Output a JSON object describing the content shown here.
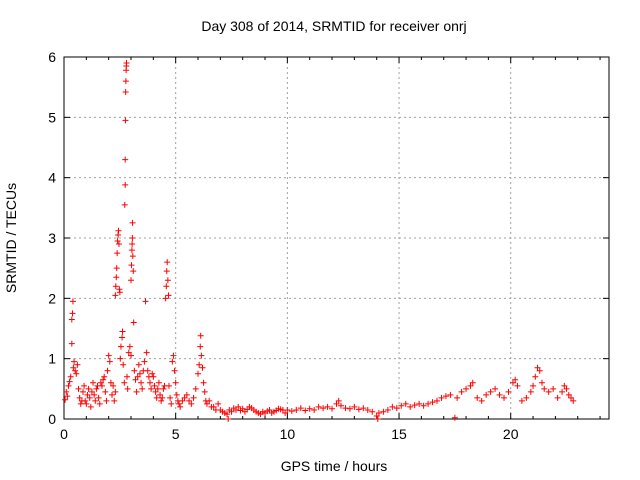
{
  "chart_data": {
    "type": "scatter",
    "title": "Day 308 of 2014, SRMTID for receiver onrj",
    "xlabel": "GPS time / hours",
    "ylabel": "SRMTID / TECUs",
    "xlim": [
      0,
      24.4
    ],
    "ylim": [
      0,
      6
    ],
    "xticks": [
      0,
      5,
      10,
      15,
      20
    ],
    "yticks": [
      0,
      1,
      2,
      3,
      4,
      5,
      6
    ],
    "grid": true,
    "marker": "+",
    "colors": {
      "series": "#ff0000",
      "grid": "#a0a0a0",
      "frame": "#000000"
    },
    "series": [
      {
        "name": "SRMTID",
        "points": [
          [
            0.05,
            0.32
          ],
          [
            0.1,
            0.45
          ],
          [
            0.15,
            0.38
          ],
          [
            0.2,
            0.55
          ],
          [
            0.25,
            0.62
          ],
          [
            0.3,
            0.7
          ],
          [
            0.35,
            1.25
          ],
          [
            0.35,
            1.65
          ],
          [
            0.38,
            1.75
          ],
          [
            0.4,
            1.95
          ],
          [
            0.42,
            0.85
          ],
          [
            0.45,
            0.95
          ],
          [
            0.5,
            0.8
          ],
          [
            0.55,
            0.75
          ],
          [
            0.6,
            0.9
          ],
          [
            0.65,
            0.5
          ],
          [
            0.7,
            0.35
          ],
          [
            0.75,
            0.25
          ],
          [
            0.8,
            0.3
          ],
          [
            0.85,
            0.45
          ],
          [
            0.9,
            0.55
          ],
          [
            0.95,
            0.3
          ],
          [
            1.0,
            0.25
          ],
          [
            1.05,
            0.4
          ],
          [
            1.1,
            0.5
          ],
          [
            1.15,
            0.35
          ],
          [
            1.2,
            0.2
          ],
          [
            1.25,
            0.45
          ],
          [
            1.3,
            0.6
          ],
          [
            1.35,
            0.4
          ],
          [
            1.4,
            0.3
          ],
          [
            1.45,
            0.5
          ],
          [
            1.5,
            0.55
          ],
          [
            1.55,
            0.35
          ],
          [
            1.6,
            0.25
          ],
          [
            1.65,
            0.6
          ],
          [
            1.7,
            0.55
          ],
          [
            1.75,
            0.65
          ],
          [
            1.8,
            0.7
          ],
          [
            1.85,
            0.45
          ],
          [
            1.9,
            0.3
          ],
          [
            1.95,
            0.8
          ],
          [
            2.0,
            1.05
          ],
          [
            2.05,
            0.95
          ],
          [
            2.1,
            0.6
          ],
          [
            2.15,
            0.4
          ],
          [
            2.2,
            0.55
          ],
          [
            2.25,
            0.3
          ],
          [
            2.3,
            0.45
          ],
          [
            2.3,
            2.05
          ],
          [
            2.32,
            2.2
          ],
          [
            2.34,
            2.35
          ],
          [
            2.36,
            2.5
          ],
          [
            2.38,
            2.75
          ],
          [
            2.4,
            2.95
          ],
          [
            2.42,
            3.05
          ],
          [
            2.44,
            3.12
          ],
          [
            2.46,
            2.9
          ],
          [
            2.48,
            2.15
          ],
          [
            2.5,
            2.1
          ],
          [
            2.52,
            1.0
          ],
          [
            2.55,
            1.2
          ],
          [
            2.6,
            1.35
          ],
          [
            2.62,
            1.45
          ],
          [
            2.65,
            0.9
          ],
          [
            2.7,
            0.6
          ],
          [
            2.72,
            3.55
          ],
          [
            2.74,
            3.88
          ],
          [
            2.74,
            4.3
          ],
          [
            2.75,
            4.95
          ],
          [
            2.76,
            5.42
          ],
          [
            2.77,
            5.6
          ],
          [
            2.78,
            5.78
          ],
          [
            2.79,
            5.85
          ],
          [
            2.8,
            5.9
          ],
          [
            2.82,
            0.7
          ],
          [
            2.85,
            0.5
          ],
          [
            2.9,
            1.1
          ],
          [
            2.95,
            1.2
          ],
          [
            3.0,
            1.05
          ],
          [
            3.0,
            2.3
          ],
          [
            3.02,
            2.55
          ],
          [
            3.04,
            2.8
          ],
          [
            3.05,
            2.9
          ],
          [
            3.06,
            3.0
          ],
          [
            3.07,
            3.25
          ],
          [
            3.08,
            2.7
          ],
          [
            3.1,
            2.45
          ],
          [
            3.12,
            1.6
          ],
          [
            3.15,
            0.8
          ],
          [
            3.2,
            0.65
          ],
          [
            3.25,
            0.45
          ],
          [
            3.3,
            0.7
          ],
          [
            3.35,
            0.9
          ],
          [
            3.4,
            0.75
          ],
          [
            3.45,
            0.6
          ],
          [
            3.5,
            0.5
          ],
          [
            3.55,
            0.8
          ],
          [
            3.6,
            0.95
          ],
          [
            3.65,
            1.95
          ],
          [
            3.7,
            1.1
          ],
          [
            3.75,
            0.8
          ],
          [
            3.8,
            0.7
          ],
          [
            3.85,
            0.6
          ],
          [
            3.9,
            0.5
          ],
          [
            3.95,
            0.75
          ],
          [
            4.0,
            0.7
          ],
          [
            4.05,
            0.55
          ],
          [
            4.1,
            0.45
          ],
          [
            4.15,
            0.35
          ],
          [
            4.2,
            0.5
          ],
          [
            4.25,
            0.6
          ],
          [
            4.3,
            0.4
          ],
          [
            4.35,
            0.3
          ],
          [
            4.4,
            0.35
          ],
          [
            4.45,
            0.5
          ],
          [
            4.5,
            0.55
          ],
          [
            4.55,
            2.0
          ],
          [
            4.58,
            2.2
          ],
          [
            4.6,
            2.45
          ],
          [
            4.62,
            2.6
          ],
          [
            4.65,
            2.3
          ],
          [
            4.68,
            2.05
          ],
          [
            4.7,
            0.55
          ],
          [
            4.75,
            0.35
          ],
          [
            4.8,
            0.25
          ],
          [
            4.85,
            0.95
          ],
          [
            4.9,
            1.05
          ],
          [
            4.95,
            0.8
          ],
          [
            5.0,
            0.6
          ],
          [
            5.05,
            0.4
          ],
          [
            5.1,
            0.3
          ],
          [
            5.15,
            0.25
          ],
          [
            5.2,
            0.2
          ],
          [
            5.3,
            0.3
          ],
          [
            5.4,
            0.35
          ],
          [
            5.5,
            0.4
          ],
          [
            5.6,
            0.3
          ],
          [
            5.7,
            0.25
          ],
          [
            5.8,
            0.35
          ],
          [
            5.9,
            0.5
          ],
          [
            6.0,
            0.75
          ],
          [
            6.05,
            0.9
          ],
          [
            6.1,
            1.2
          ],
          [
            6.12,
            1.38
          ],
          [
            6.15,
            1.05
          ],
          [
            6.2,
            0.85
          ],
          [
            6.25,
            0.6
          ],
          [
            6.3,
            0.45
          ],
          [
            6.35,
            0.3
          ],
          [
            6.4,
            0.25
          ],
          [
            6.5,
            0.3
          ],
          [
            6.6,
            0.2
          ],
          [
            6.7,
            0.2
          ],
          [
            6.8,
            0.15
          ],
          [
            6.9,
            0.25
          ],
          [
            7.0,
            0.15
          ],
          [
            7.1,
            0.12
          ],
          [
            7.2,
            0.1
          ],
          [
            7.3,
            0.08
          ],
          [
            7.35,
            0.0
          ],
          [
            7.4,
            0.15
          ],
          [
            7.5,
            0.12
          ],
          [
            7.6,
            0.18
          ],
          [
            7.7,
            0.15
          ],
          [
            7.8,
            0.2
          ],
          [
            7.9,
            0.14
          ],
          [
            8.0,
            0.17
          ],
          [
            8.1,
            0.12
          ],
          [
            8.2,
            0.16
          ],
          [
            8.3,
            0.2
          ],
          [
            8.4,
            0.18
          ],
          [
            8.5,
            0.15
          ],
          [
            8.6,
            0.12
          ],
          [
            8.7,
            0.1
          ],
          [
            8.8,
            0.08
          ],
          [
            8.9,
            0.12
          ],
          [
            9.0,
            0.1
          ],
          [
            9.1,
            0.13
          ],
          [
            9.2,
            0.15
          ],
          [
            9.3,
            0.1
          ],
          [
            9.4,
            0.12
          ],
          [
            9.5,
            0.14
          ],
          [
            9.6,
            0.17
          ],
          [
            9.7,
            0.16
          ],
          [
            9.8,
            0.15
          ],
          [
            9.9,
            0.1
          ],
          [
            10.0,
            0.15
          ],
          [
            10.2,
            0.13
          ],
          [
            10.4,
            0.15
          ],
          [
            10.6,
            0.18
          ],
          [
            10.8,
            0.14
          ],
          [
            11.0,
            0.17
          ],
          [
            11.2,
            0.15
          ],
          [
            11.4,
            0.2
          ],
          [
            11.6,
            0.18
          ],
          [
            11.8,
            0.2
          ],
          [
            12.0,
            0.17
          ],
          [
            12.2,
            0.25
          ],
          [
            12.3,
            0.3
          ],
          [
            12.4,
            0.22
          ],
          [
            12.6,
            0.18
          ],
          [
            12.8,
            0.17
          ],
          [
            13.0,
            0.2
          ],
          [
            13.2,
            0.16
          ],
          [
            13.4,
            0.18
          ],
          [
            13.6,
            0.15
          ],
          [
            13.8,
            0.12
          ],
          [
            14.0,
            0.05
          ],
          [
            14.05,
            0.0
          ],
          [
            14.1,
            0.1
          ],
          [
            14.3,
            0.12
          ],
          [
            14.5,
            0.15
          ],
          [
            14.7,
            0.2
          ],
          [
            14.9,
            0.18
          ],
          [
            15.1,
            0.22
          ],
          [
            15.3,
            0.25
          ],
          [
            15.5,
            0.2
          ],
          [
            15.7,
            0.23
          ],
          [
            15.9,
            0.25
          ],
          [
            16.1,
            0.22
          ],
          [
            16.3,
            0.25
          ],
          [
            16.5,
            0.28
          ],
          [
            16.7,
            0.3
          ],
          [
            16.9,
            0.35
          ],
          [
            17.1,
            0.38
          ],
          [
            17.3,
            0.4
          ],
          [
            17.5,
            0.02
          ],
          [
            17.6,
            0.35
          ],
          [
            17.8,
            0.45
          ],
          [
            18.0,
            0.5
          ],
          [
            18.2,
            0.55
          ],
          [
            18.3,
            0.6
          ],
          [
            18.5,
            0.35
          ],
          [
            18.7,
            0.3
          ],
          [
            18.9,
            0.4
          ],
          [
            19.1,
            0.45
          ],
          [
            19.3,
            0.5
          ],
          [
            19.5,
            0.4
          ],
          [
            19.7,
            0.35
          ],
          [
            19.9,
            0.45
          ],
          [
            20.1,
            0.6
          ],
          [
            20.2,
            0.65
          ],
          [
            20.3,
            0.55
          ],
          [
            20.5,
            0.3
          ],
          [
            20.7,
            0.35
          ],
          [
            20.9,
            0.45
          ],
          [
            21.0,
            0.55
          ],
          [
            21.1,
            0.7
          ],
          [
            21.2,
            0.85
          ],
          [
            21.3,
            0.8
          ],
          [
            21.4,
            0.6
          ],
          [
            21.5,
            0.5
          ],
          [
            21.7,
            0.45
          ],
          [
            21.9,
            0.5
          ],
          [
            22.1,
            0.35
          ],
          [
            22.3,
            0.45
          ],
          [
            22.4,
            0.55
          ],
          [
            22.5,
            0.5
          ],
          [
            22.6,
            0.4
          ],
          [
            22.7,
            0.35
          ],
          [
            22.8,
            0.3
          ]
        ]
      }
    ]
  }
}
